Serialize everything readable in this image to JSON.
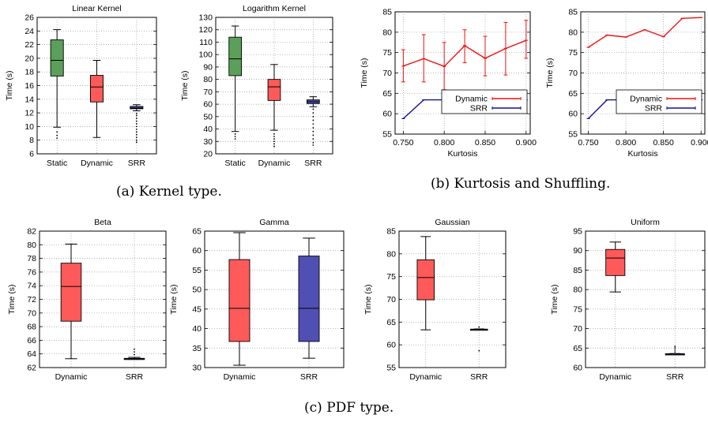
{
  "captions": {
    "a": "(a) Kernel type.",
    "b": "(b) Kurtosis and Shuffling.",
    "c": "(c) PDF type."
  },
  "colors": {
    "static": "#5aa05a",
    "dynamic": "#ff5a5a",
    "srr": "#5050b4",
    "line_dynamic": "#ee1111",
    "line_srr": "#111199"
  },
  "chart_data": [
    {
      "id": "linear",
      "type": "box",
      "title": "Linear Kernel",
      "ylabel": "Time (s)",
      "ylim": [
        6,
        26
      ],
      "yticks": [
        6,
        8,
        10,
        12,
        14,
        16,
        18,
        20,
        22,
        24,
        26
      ],
      "grid": true,
      "boxes": [
        {
          "label": "Static",
          "color": "#5aa05a",
          "whisker_low": 9.9,
          "q1": 17.4,
          "median": 19.7,
          "q3": 22.7,
          "whisker_high": 24.2,
          "outliers": [
            9.2,
            8.7,
            8.3
          ]
        },
        {
          "label": "Dynamic",
          "color": "#ff5a5a",
          "whisker_low": 8.4,
          "q1": 13.6,
          "median": 15.8,
          "q3": 17.5,
          "whisker_high": 19.7,
          "outliers": []
        },
        {
          "label": "SRR",
          "color": "#5050b4",
          "whisker_low": 12.3,
          "q1": 12.6,
          "median": 12.7,
          "q3": 12.95,
          "whisker_high": 13.2,
          "outliers": [
            11.9,
            11.6,
            11.2,
            10.8,
            10.4,
            10.0,
            9.6,
            9.2,
            8.8,
            8.4,
            8.0,
            7.7
          ]
        }
      ]
    },
    {
      "id": "log",
      "type": "box",
      "title": "Logarithm Kernel",
      "ylabel": "Time (s)",
      "ylim": [
        20,
        130
      ],
      "yticks": [
        20,
        30,
        40,
        50,
        60,
        70,
        80,
        90,
        100,
        110,
        120,
        130
      ],
      "grid": true,
      "boxes": [
        {
          "label": "Static",
          "color": "#5aa05a",
          "whisker_low": 38,
          "q1": 83,
          "median": 96.5,
          "q3": 114,
          "whisker_high": 123,
          "outliers": [
            36,
            34,
            32
          ]
        },
        {
          "label": "Dynamic",
          "color": "#ff5a5a",
          "whisker_low": 39,
          "q1": 63,
          "median": 74,
          "q3": 80,
          "whisker_high": 92,
          "outliers": [
            36,
            34,
            32,
            30,
            28,
            26
          ]
        },
        {
          "label": "SRR",
          "color": "#5050b4",
          "whisker_low": 58,
          "q1": 60.5,
          "median": 62,
          "q3": 63.5,
          "whisker_high": 66,
          "outliers": [
            56,
            53,
            50,
            47,
            44,
            41,
            38,
            35,
            32,
            29,
            27
          ]
        }
      ]
    },
    {
      "id": "kurtosis",
      "type": "line",
      "title": "",
      "xlabel": "Kurtosis",
      "ylabel": "Time (s)",
      "xlim": [
        0.74,
        0.905
      ],
      "ylim": [
        55,
        85
      ],
      "xticks": [
        0.75,
        0.8,
        0.85,
        0.9
      ],
      "xtick_labels": [
        "0.750",
        "0.800",
        "0.850",
        "0.900"
      ],
      "yticks": [
        55,
        60,
        65,
        70,
        75,
        80,
        85
      ],
      "grid": true,
      "legend_position": "bottom-right",
      "series": [
        {
          "name": "Dynamic",
          "color": "#ee1111",
          "x": [
            0.75,
            0.775,
            0.8,
            0.825,
            0.85,
            0.875,
            0.9
          ],
          "y": [
            71.7,
            73.5,
            71.6,
            76.7,
            73.6,
            76.0,
            78.0
          ],
          "err_low": [
            67.8,
            67.8,
            65.9,
            72.5,
            69.3,
            69.5,
            73.6
          ],
          "err_high": [
            75.7,
            79.4,
            77.5,
            80.6,
            79.0,
            82.4,
            82.9
          ]
        },
        {
          "name": "SRR",
          "color": "#111199",
          "x": [
            0.75,
            0.775,
            0.8,
            0.825,
            0.85,
            0.875,
            0.9
          ],
          "y": [
            58.8,
            63.4,
            63.4,
            63.4,
            63.4,
            63.4,
            63.4
          ]
        }
      ]
    },
    {
      "id": "shuffling",
      "type": "line",
      "title": "",
      "xlabel": "Kurtosis",
      "ylabel": "Time (s)",
      "xlim": [
        0.74,
        0.905
      ],
      "ylim": [
        55,
        85
      ],
      "xticks": [
        0.75,
        0.8,
        0.85,
        0.9
      ],
      "xtick_labels": [
        "0.750",
        "0.800",
        "0.850",
        "0.900"
      ],
      "yticks": [
        55,
        60,
        65,
        70,
        75,
        80,
        85
      ],
      "grid": true,
      "legend_position": "bottom-right",
      "series": [
        {
          "name": "Dynamic",
          "color": "#ee1111",
          "x": [
            0.75,
            0.775,
            0.8,
            0.825,
            0.85,
            0.875,
            0.9
          ],
          "y": [
            76.3,
            79.3,
            78.8,
            80.6,
            78.9,
            83.4,
            83.6
          ]
        },
        {
          "name": "SRR",
          "color": "#111199",
          "x": [
            0.75,
            0.775,
            0.8,
            0.825,
            0.85,
            0.875,
            0.9
          ],
          "y": [
            58.8,
            63.4,
            63.4,
            63.4,
            63.4,
            63.4,
            63.4
          ]
        }
      ]
    },
    {
      "id": "beta",
      "type": "box",
      "title": "Beta",
      "ylabel": "Time (s)",
      "ylim": [
        62,
        82
      ],
      "yticks": [
        62,
        64,
        66,
        68,
        70,
        72,
        74,
        76,
        78,
        80,
        82
      ],
      "grid": true,
      "boxes": [
        {
          "label": "Dynamic",
          "color": "#ff5a5a",
          "whisker_low": 63.3,
          "q1": 68.8,
          "median": 73.9,
          "q3": 77.3,
          "whisker_high": 80.1,
          "outliers": []
        },
        {
          "label": "SRR",
          "color": "#5050b4",
          "whisker_low": 63.2,
          "q1": 63.25,
          "median": 63.3,
          "q3": 63.35,
          "whisker_high": 63.5,
          "outliers": [
            63.9,
            64.3,
            64.7
          ]
        }
      ]
    },
    {
      "id": "gamma",
      "type": "box",
      "title": "Gamma",
      "ylabel": "Time (s)",
      "ylim": [
        30,
        65
      ],
      "yticks": [
        30,
        35,
        40,
        45,
        50,
        55,
        60,
        65
      ],
      "grid": true,
      "boxes": [
        {
          "label": "Dynamic",
          "color": "#ff5a5a",
          "whisker_low": 30.6,
          "q1": 36.7,
          "median": 45.2,
          "q3": 57.7,
          "whisker_high": 64.6,
          "outliers": []
        },
        {
          "label": "SRR",
          "color": "#5050b4",
          "whisker_low": 32.4,
          "q1": 36.7,
          "median": 45.2,
          "q3": 58.6,
          "whisker_high": 63.2,
          "outliers": []
        }
      ]
    },
    {
      "id": "gaussian",
      "type": "box",
      "title": "Gaussian",
      "ylabel": "Time (s)",
      "ylim": [
        55,
        85
      ],
      "yticks": [
        55,
        60,
        65,
        70,
        75,
        80,
        85
      ],
      "grid": true,
      "boxes": [
        {
          "label": "Dynamic",
          "color": "#ff5a5a",
          "whisker_low": 63.3,
          "q1": 69.9,
          "median": 74.8,
          "q3": 78.7,
          "whisker_high": 83.8,
          "outliers": []
        },
        {
          "label": "SRR",
          "color": "#5050b4",
          "whisker_low": 63.3,
          "q1": 63.35,
          "median": 63.4,
          "q3": 63.45,
          "whisker_high": 63.5,
          "outliers": [
            63.9,
            58.7
          ]
        }
      ]
    },
    {
      "id": "uniform",
      "type": "box",
      "title": "Uniform",
      "ylabel": "Time (s)",
      "ylim": [
        60,
        95
      ],
      "yticks": [
        60,
        65,
        70,
        75,
        80,
        85,
        90,
        95
      ],
      "grid": true,
      "boxes": [
        {
          "label": "Dynamic",
          "color": "#ff5a5a",
          "whisker_low": 79.4,
          "q1": 83.6,
          "median": 88.1,
          "q3": 90.3,
          "whisker_high": 92.2,
          "outliers": []
        },
        {
          "label": "SRR",
          "color": "#5050b4",
          "whisker_low": 63.4,
          "q1": 63.45,
          "median": 63.5,
          "q3": 63.55,
          "whisker_high": 63.6,
          "outliers": [
            64.0,
            64.5,
            65.0,
            65.4
          ]
        }
      ]
    }
  ]
}
